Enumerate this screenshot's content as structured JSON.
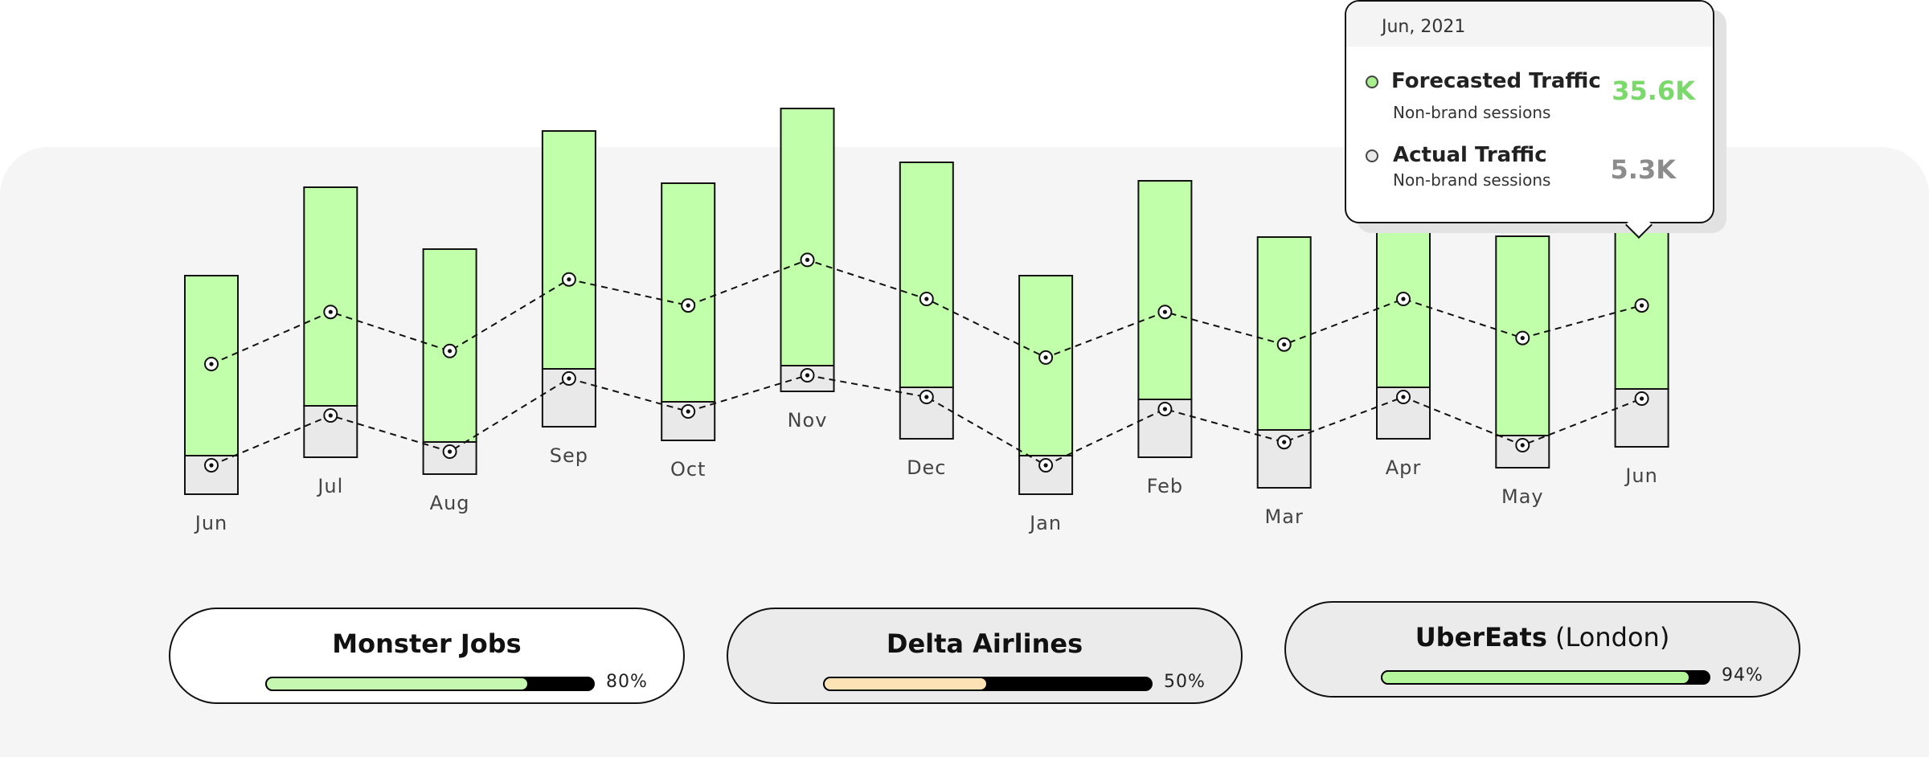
{
  "chart_data": {
    "type": "bar",
    "categories": [
      "Jun",
      "Jul",
      "Aug",
      "Sep",
      "Oct",
      "Nov",
      "Dec",
      "Jan",
      "Feb",
      "Mar",
      "Apr",
      "May",
      "Jun"
    ],
    "series": [
      {
        "name": "Forecasted Traffic",
        "values": [
          28,
          34,
          30,
          37,
          34,
          40,
          35,
          28,
          34,
          30,
          35,
          31,
          34
        ]
      },
      {
        "name": "Actual Traffic",
        "values": [
          6,
          8,
          5,
          9,
          6,
          4,
          8,
          6,
          9,
          9,
          8,
          5,
          9
        ]
      }
    ],
    "line_series": [
      {
        "name": "Forecasted Traffic",
        "values": [
          20,
          28,
          22,
          33,
          29,
          36,
          30,
          21,
          28,
          23,
          30,
          24,
          29
        ]
      },
      {
        "name": "Actual Traffic",
        "values": [
          6,
          15,
          8,
          20,
          16,
          23,
          16,
          8,
          15,
          8,
          16,
          11,
          17
        ]
      }
    ],
    "colors": {
      "forecast": "#c2ffaa",
      "actual": "#e9e9e9"
    },
    "xlabel": "",
    "ylabel": "",
    "grid": false,
    "legend": "none"
  },
  "tooltip": {
    "date": "Jun, 2021",
    "forecast_name": "Forecasted Traffic",
    "forecast_sub": "Non-brand sessions",
    "forecast_value": "35.6K",
    "actual_name": "Actual Traffic",
    "actual_sub": "Non-brand sessions",
    "actual_value": "5.3K"
  },
  "clients": [
    {
      "name": "Monster Jobs",
      "suffix": "",
      "progress": 0.8,
      "progress_label": "80%",
      "bar_color": "#c6f7b1",
      "style": "white"
    },
    {
      "name": "Delta Airlines",
      "suffix": "",
      "progress": 0.5,
      "progress_label": "50%",
      "bar_color": "#fbe3b6",
      "style": "grey"
    },
    {
      "name": "UberEats",
      "suffix": "(London)",
      "progress": 0.94,
      "progress_label": "94%",
      "bar_color": "#b5f59c",
      "style": "grey"
    }
  ]
}
